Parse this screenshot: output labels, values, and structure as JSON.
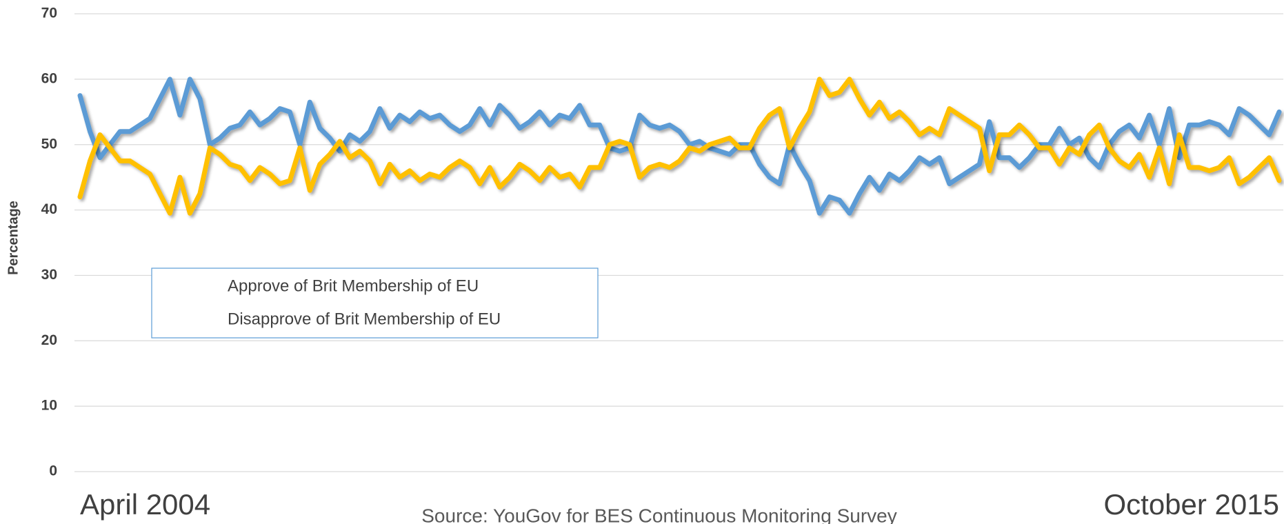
{
  "chart_data": {
    "type": "line",
    "ylabel": "Percentage",
    "source": "Source: YouGov for BES Continuous Monitoring Survey",
    "categories": [
      "April 2004",
      null,
      null,
      null,
      null,
      null,
      null,
      null,
      null,
      null,
      null,
      null,
      null,
      null,
      null,
      null,
      null,
      null,
      null,
      null,
      null,
      null,
      null,
      null,
      null,
      null,
      null,
      null,
      null,
      null,
      null,
      null,
      null,
      null,
      null,
      null,
      null,
      null,
      null,
      null,
      null,
      null,
      null,
      null,
      null,
      null,
      null,
      null,
      null,
      null,
      null,
      null,
      null,
      null,
      null,
      null,
      null,
      null,
      null,
      null,
      null,
      null,
      null,
      null,
      null,
      null,
      null,
      null,
      null,
      null,
      null,
      null,
      null,
      null,
      null,
      null,
      null,
      null,
      null,
      null,
      null,
      null,
      null,
      null,
      null,
      null,
      null,
      null,
      null,
      null,
      null,
      null,
      null,
      null,
      null,
      null,
      null,
      null,
      null,
      null,
      null,
      null,
      null,
      null,
      null,
      null,
      null,
      null,
      null,
      null,
      null,
      null,
      null,
      null,
      null,
      null,
      null,
      null,
      null,
      null,
      "October 2015"
    ],
    "series": [
      {
        "name": "Approve of Brit Membership of EU",
        "color": "#5b9bd5",
        "values": [
          57.5,
          52,
          48,
          50,
          52,
          52,
          53,
          54,
          57,
          60,
          54.5,
          60,
          57,
          50,
          51,
          52.5,
          53,
          55,
          53,
          54,
          55.5,
          55,
          50,
          56.5,
          52.5,
          51,
          49,
          51.5,
          50.5,
          52,
          55.5,
          52.5,
          54.5,
          53.5,
          55,
          54,
          54.5,
          53,
          52,
          53,
          55.5,
          53,
          56,
          54.5,
          52.5,
          53.5,
          55,
          53,
          54.5,
          54,
          56,
          53,
          53,
          49.5,
          49,
          49.5,
          54.5,
          53,
          52.5,
          53,
          52,
          50,
          50.5,
          49.5,
          49,
          48.5,
          50,
          50,
          47,
          45,
          44,
          50,
          47,
          44.5,
          39.5,
          42,
          41.5,
          39.5,
          42.5,
          45,
          43,
          45.5,
          44.5,
          46,
          48,
          47,
          48,
          44,
          45,
          46,
          47,
          53.5,
          48,
          48,
          46.5,
          48,
          50,
          50,
          52.5,
          50,
          51,
          48,
          46.5,
          50,
          52,
          53,
          51,
          54.5,
          50,
          55.5,
          48,
          53,
          53,
          53.5,
          53,
          51.5,
          55.5,
          54.5,
          53,
          51.5,
          55
        ]
      },
      {
        "name": "Disapprove of Brit Membership of EU",
        "color": "#ffc000",
        "values": [
          42,
          47.5,
          51.5,
          49.5,
          47.5,
          47.5,
          46.5,
          45.5,
          42.5,
          39.5,
          45,
          39.5,
          42.5,
          49.5,
          48.5,
          47,
          46.5,
          44.5,
          46.5,
          45.5,
          44,
          44.5,
          49.5,
          43,
          47,
          48.5,
          50.5,
          48,
          49,
          47.5,
          44,
          47,
          45,
          46,
          44.5,
          45.5,
          45,
          46.5,
          47.5,
          46.5,
          44,
          46.5,
          43.5,
          45,
          47,
          46,
          44.5,
          46.5,
          45,
          45.5,
          43.5,
          46.5,
          46.5,
          50,
          50.5,
          50,
          45,
          46.5,
          47,
          46.5,
          47.5,
          49.5,
          49,
          50,
          50.5,
          51,
          49.5,
          49.5,
          52.5,
          54.5,
          55.5,
          49.5,
          52.5,
          55,
          60,
          57.5,
          58,
          60,
          57,
          54.5,
          56.5,
          54,
          55,
          53.5,
          51.5,
          52.5,
          51.5,
          55.5,
          54.5,
          53.5,
          52.5,
          46,
          51.5,
          51.5,
          53,
          51.5,
          49.5,
          49.5,
          47,
          49.5,
          48.5,
          51.5,
          53,
          49.5,
          47.5,
          46.5,
          48.5,
          45,
          49.5,
          44,
          51.5,
          46.5,
          46.5,
          46,
          46.5,
          48,
          44,
          45,
          46.5,
          48,
          44.5
        ]
      }
    ],
    "ylim": [
      0,
      70
    ],
    "yticks": [
      0,
      10,
      20,
      30,
      40,
      50,
      60,
      70
    ],
    "grid": true,
    "legend": "left"
  }
}
